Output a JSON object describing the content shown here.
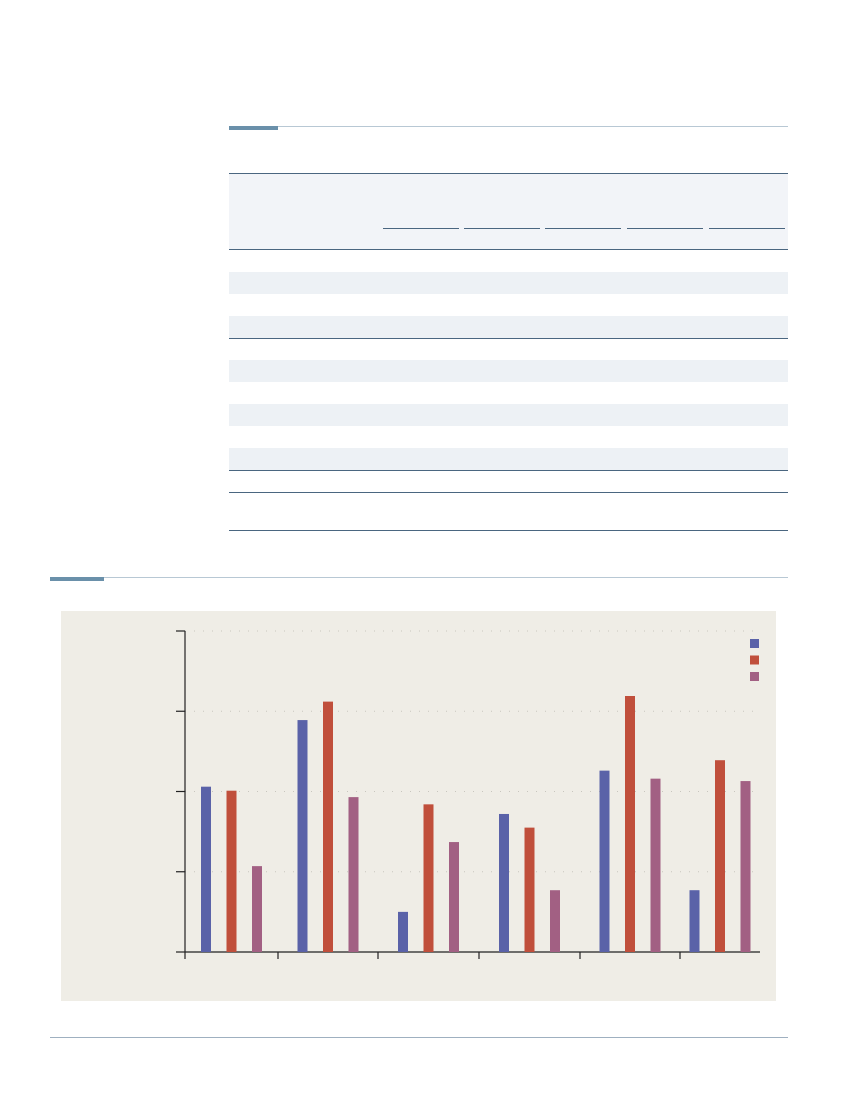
{
  "section1": {
    "title": "",
    "table": {
      "columns": [
        "",
        "",
        "",
        "",
        "",
        ""
      ],
      "rows": [
        [
          "",
          "",
          "",
          "",
          "",
          ""
        ],
        [
          "",
          "",
          "",
          "",
          "",
          ""
        ],
        [
          "",
          "",
          "",
          "",
          "",
          ""
        ],
        [
          "",
          "",
          "",
          "",
          "",
          ""
        ],
        [
          "",
          "",
          "",
          "",
          "",
          ""
        ],
        [
          "",
          "",
          "",
          "",
          "",
          ""
        ],
        [
          "",
          "",
          "",
          "",
          "",
          ""
        ],
        [
          "",
          "",
          "",
          "",
          "",
          ""
        ],
        [
          "",
          "",
          "",
          "",
          "",
          ""
        ],
        [
          "",
          "",
          "",
          "",
          "",
          ""
        ],
        [
          "",
          "",
          "",
          "",
          "",
          ""
        ],
        [
          "",
          "",
          "",
          "",
          "",
          ""
        ]
      ]
    }
  },
  "section2": {
    "title": ""
  },
  "colors": {
    "accent": "#6a90aa",
    "table_rule": "#4a6680",
    "chart_bg": "#efede6"
  },
  "chart_data": {
    "type": "bar",
    "title": "",
    "xlabel": "",
    "ylabel": "",
    "categories": [
      "",
      "",
      "",
      "",
      "",
      ""
    ],
    "ylim": [
      0,
      4
    ],
    "grid": true,
    "legend": "top-right",
    "series": [
      {
        "color": "#5a62a8",
        "values": [
          2.06,
          2.89,
          0.5,
          1.72,
          2.26,
          0.77
        ]
      },
      {
        "color": "#c04f3b",
        "values": [
          2.01,
          3.12,
          1.84,
          1.55,
          3.19,
          2.39
        ]
      },
      {
        "color": "#a26083",
        "values": [
          1.07,
          1.93,
          1.37,
          0.77,
          2.16,
          2.13
        ]
      }
    ]
  }
}
